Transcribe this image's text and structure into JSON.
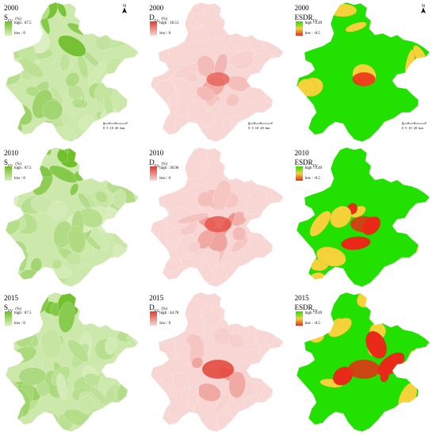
{
  "colors": {
    "green_high": "#6fbf2a",
    "green_low": "#dcefc1",
    "red_high": "#e23b2e",
    "red_low": "#f7d6d4",
    "esdr_high": "#22e000",
    "esdr_mid": "#f3d23a",
    "esdr_low": "#ea2a18"
  },
  "panels": [
    {
      "id": "p-2000-s",
      "kind": "green",
      "year": "2000",
      "sym": "S",
      "sub": "FV",
      "unit": "(%)",
      "high": "high : 67.5",
      "low": "low : 0",
      "north": true,
      "scale": true
    },
    {
      "id": "p-2000-d",
      "kind": "red",
      "year": "2000",
      "sym": "D",
      "sub": "ES",
      "unit": "(%)",
      "high": "high : 10.51",
      "low": "low : 0",
      "north": false,
      "scale": true
    },
    {
      "id": "p-2000-e",
      "kind": "esdr",
      "year": "2000",
      "sym": "ESDR",
      "sub": "FV",
      "unit": "",
      "high": "high : 0.49",
      "low": "low : -0.5",
      "north": true,
      "scale": true
    },
    {
      "id": "p-2010-s",
      "kind": "green",
      "year": "2010",
      "sym": "S",
      "sub": "FV",
      "unit": "(%)",
      "high": "high : 67.5",
      "low": "low : 0",
      "north": false,
      "scale": false
    },
    {
      "id": "p-2010-d",
      "kind": "red",
      "year": "2010",
      "sym": "D",
      "sub": "ES",
      "unit": "(%)",
      "high": "high : 30.96",
      "low": "low : 0",
      "north": false,
      "scale": false
    },
    {
      "id": "p-2010-e",
      "kind": "esdr",
      "year": "2010",
      "sym": "ESDR",
      "sub": "FV",
      "unit": "",
      "high": "high : 0.49",
      "low": "low : -0.5",
      "north": false,
      "scale": false
    },
    {
      "id": "p-2015-s",
      "kind": "green",
      "year": "2015",
      "sym": "S",
      "sub": "FV",
      "unit": "(%)",
      "high": "high : 67.5",
      "low": "low : 0",
      "north": false,
      "scale": false
    },
    {
      "id": "p-2015-d",
      "kind": "red",
      "year": "2015",
      "sym": "D",
      "sub": "ES",
      "unit": "(%)",
      "high": "high : 44.78",
      "low": "low : 0",
      "north": false,
      "scale": false
    },
    {
      "id": "p-2015-e",
      "kind": "esdr",
      "year": "2015",
      "sym": "ESDR",
      "sub": "FV",
      "unit": "",
      "high": "high : 0.49",
      "low": "low : -0.5",
      "north": false,
      "scale": false
    }
  ],
  "north_label": "N",
  "scale_labels": [
    "0",
    "5",
    "10",
    "20"
  ],
  "scale_unit": "km"
}
